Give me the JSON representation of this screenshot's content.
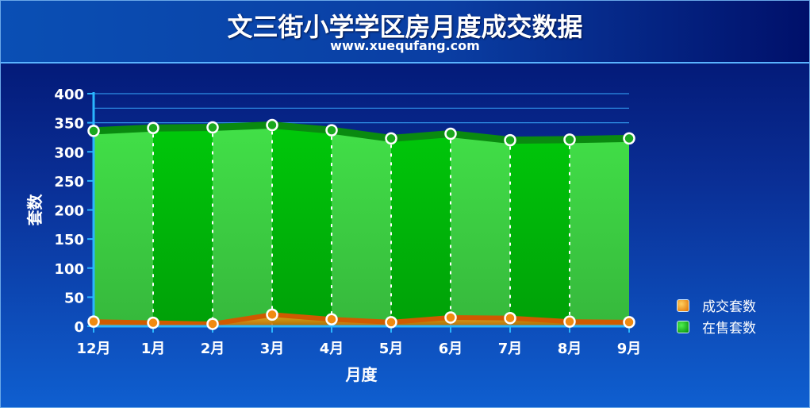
{
  "header": {
    "title": "文三街小学学区房月度成交数据",
    "subtitle": "www.xuequfang.com"
  },
  "colors": {
    "listing_light": "#3fdc45",
    "listing_dark": "#00c80a",
    "listing_edge": "#0a8a10",
    "deal_fill": "#f08000",
    "deal_edge": "#d05a00",
    "axis": "#29b6ff",
    "gridline": "#2f8fe6"
  },
  "chart_data": {
    "type": "area",
    "title": "文三街小学学区房月度成交数据",
    "subtitle": "www.xuequfang.com",
    "xlabel": "月度",
    "ylabel": "套数",
    "categories": [
      "12月",
      "1月",
      "2月",
      "3月",
      "4月",
      "5月",
      "6月",
      "7月",
      "8月",
      "9月"
    ],
    "yticks": [
      "0",
      "50",
      "100",
      "150",
      "200",
      "250",
      "300",
      "350",
      "400"
    ],
    "ylim": [
      0,
      400
    ],
    "gridlines_y": [
      350,
      375,
      400
    ],
    "legend_position": "right",
    "series": [
      {
        "name": "成交套数",
        "color": "#f08000",
        "values": [
          8,
          6,
          4,
          20,
          12,
          7,
          15,
          14,
          8,
          7
        ]
      },
      {
        "name": "在售套数",
        "color": "#00b80a",
        "values": [
          336,
          341,
          342,
          346,
          337,
          323,
          331,
          320,
          321,
          323
        ]
      }
    ]
  }
}
